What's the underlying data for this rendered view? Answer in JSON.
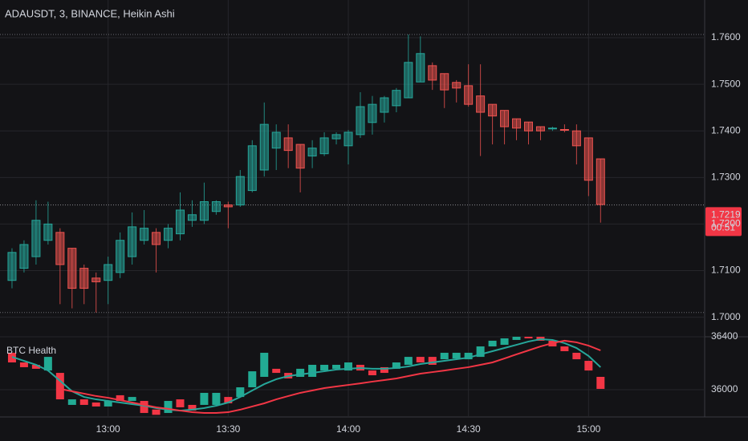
{
  "chart_data": [
    {
      "type": "candlestick",
      "title": "ADAUSDT, 3, BINANCE, Heikin Ashi",
      "x": [
        "12:36",
        "12:39",
        "12:42",
        "12:45",
        "12:48",
        "12:51",
        "12:54",
        "12:57",
        "13:00",
        "13:03",
        "13:06",
        "13:09",
        "13:12",
        "13:15",
        "13:18",
        "13:21",
        "13:24",
        "13:27",
        "13:30",
        "13:33",
        "13:36",
        "13:39",
        "13:42",
        "13:45",
        "13:48",
        "13:51",
        "13:54",
        "13:57",
        "14:00",
        "14:03",
        "14:06",
        "14:09",
        "14:12",
        "14:15",
        "14:18",
        "14:21",
        "14:24",
        "14:27",
        "14:30",
        "14:33",
        "14:36",
        "14:39",
        "14:42",
        "14:45",
        "14:48",
        "14:51",
        "14:54",
        "14:57",
        "15:00",
        "15:03"
      ],
      "open": [
        1.7079,
        1.7105,
        1.713,
        1.7165,
        1.7182,
        1.7148,
        1.7105,
        1.7084,
        1.7079,
        1.7096,
        1.713,
        1.7165,
        1.7182,
        1.7165,
        1.7179,
        1.7208,
        1.7208,
        1.7227,
        1.7241,
        1.7241,
        1.7272,
        1.7316,
        1.7363,
        1.7385,
        1.7371,
        1.7346,
        1.7351,
        1.7383,
        1.7368,
        1.7392,
        1.7418,
        1.744,
        1.7454,
        1.7471,
        1.7505,
        1.754,
        1.7523,
        1.7504,
        1.7497,
        1.7475,
        1.7457,
        1.7444,
        1.7426,
        1.7419,
        1.7409,
        1.7405,
        1.7403,
        1.74,
        1.7385,
        1.734
      ],
      "high": [
        1.7148,
        1.7165,
        1.7251,
        1.7248,
        1.7191,
        1.7148,
        1.7113,
        1.7096,
        1.713,
        1.7182,
        1.7225,
        1.723,
        1.7191,
        1.72,
        1.7268,
        1.7251,
        1.7289,
        1.7251,
        1.7248,
        1.7316,
        1.738,
        1.7461,
        1.7414,
        1.7414,
        1.7371,
        1.738,
        1.7397,
        1.7397,
        1.7402,
        1.7483,
        1.7475,
        1.7475,
        1.7492,
        1.7607,
        1.7603,
        1.7547,
        1.7523,
        1.7509,
        1.7543,
        1.7543,
        1.7457,
        1.7444,
        1.7426,
        1.7419,
        1.7409,
        1.7409,
        1.7414,
        1.7414,
        1.7385,
        1.734
      ],
      "low": [
        1.7062,
        1.7096,
        1.7113,
        1.7156,
        1.7028,
        1.7019,
        1.7028,
        1.701,
        1.7028,
        1.7084,
        1.7113,
        1.7156,
        1.7096,
        1.7148,
        1.7165,
        1.7194,
        1.72,
        1.722,
        1.7191,
        1.7237,
        1.7268,
        1.7302,
        1.7316,
        1.732,
        1.7268,
        1.732,
        1.7346,
        1.7371,
        1.7328,
        1.7385,
        1.7392,
        1.7418,
        1.744,
        1.7471,
        1.7505,
        1.7488,
        1.7449,
        1.7461,
        1.7452,
        1.7346,
        1.7371,
        1.7371,
        1.738,
        1.7371,
        1.738,
        1.74,
        1.7397,
        1.7328,
        1.726,
        1.7203
      ],
      "close": [
        1.7139,
        1.7156,
        1.7208,
        1.72,
        1.7113,
        1.7062,
        1.7062,
        1.7076,
        1.7113,
        1.7165,
        1.7194,
        1.7191,
        1.7156,
        1.7191,
        1.723,
        1.722,
        1.7248,
        1.7248,
        1.7237,
        1.7302,
        1.7368,
        1.7414,
        1.7397,
        1.7358,
        1.732,
        1.7363,
        1.7385,
        1.7392,
        1.7397,
        1.7452,
        1.7457,
        1.7471,
        1.7487,
        1.7547,
        1.7566,
        1.7509,
        1.7488,
        1.7492,
        1.7457,
        1.744,
        1.7432,
        1.7409,
        1.7406,
        1.74,
        1.74,
        1.7406,
        1.7402,
        1.7368,
        1.7294,
        1.7242
      ],
      "xlim": [
        "12:33",
        "15:29"
      ],
      "xticks": [
        "13:00",
        "13:30",
        "14:00",
        "14:30",
        "15:00"
      ],
      "ylim": [
        1.6958,
        1.7681
      ],
      "yticks": [
        {
          "value": 1.76,
          "label": "1.7600"
        },
        {
          "value": 1.75,
          "label": "1.7500"
        },
        {
          "value": 1.74,
          "label": "1.7400"
        },
        {
          "value": 1.73,
          "label": "1.7300"
        },
        {
          "value": 1.72,
          "label": "1.7200"
        },
        {
          "value": 1.71,
          "label": "1.7100"
        },
        {
          "value": 1.7,
          "label": "1.7000"
        }
      ],
      "grid": true,
      "up_color": "#26a69a",
      "down_color": "#ef5350",
      "range_lines": [
        1.7607,
        1.701
      ],
      "price_line": 1.7241,
      "last_price": 1.7219,
      "countdown": "00:51",
      "badge_color": "#f23645"
    },
    {
      "type": "indicator",
      "title": "BTC Health",
      "open": [
        36279,
        36206,
        36188,
        36145,
        36127,
        35885,
        35927,
        35903,
        35873,
        35958,
        35915,
        35915,
        35850,
        35824,
        35927,
        35885,
        35885,
        35885,
        35945,
        35945,
        36018,
        36097,
        36158,
        36127,
        36097,
        36097,
        36145,
        36158,
        36145,
        36188,
        36145,
        36170,
        36158,
        36188,
        36248,
        36248,
        36230,
        36236,
        36230,
        36248,
        36327,
        36339,
        36376,
        36400,
        36400,
        36370,
        36327,
        36279,
        36218,
        36097
      ],
      "close": [
        36206,
        36170,
        36158,
        36248,
        35927,
        35927,
        35885,
        35873,
        35915,
        35915,
        35945,
        35824,
        35810,
        35915,
        35867,
        35842,
        35976,
        35976,
        35897,
        36018,
        36139,
        36279,
        36127,
        36085,
        36158,
        36188,
        36188,
        36188,
        36206,
        36145,
        36109,
        36127,
        36206,
        36248,
        36206,
        36188,
        36279,
        36279,
        36279,
        36327,
        36370,
        36388,
        36400,
        36388,
        36370,
        36327,
        36291,
        36230,
        36145,
        36006
      ],
      "lines": [
        {
          "color": "#26a69a",
          "values": [
            36248,
            36218,
            36188,
            36145,
            36067,
            35988,
            35945,
            35927,
            35915,
            35903,
            35891,
            35879,
            35861,
            35849,
            35842,
            35849,
            35861,
            35879,
            35903,
            35945,
            35994,
            36042,
            36079,
            36103,
            36115,
            36127,
            36139,
            36152,
            36158,
            36164,
            36158,
            36158,
            36164,
            36176,
            36194,
            36206,
            36218,
            36230,
            36242,
            36267,
            36291,
            36315,
            36339,
            36364,
            36382,
            36376,
            36352,
            36315,
            36255,
            36170
          ]
        },
        {
          "color": "#f23645",
          "values": [
            null,
            null,
            null,
            null,
            36006,
            35988,
            35970,
            35952,
            35939,
            35921,
            35903,
            35885,
            35867,
            35855,
            35842,
            35830,
            35824,
            35824,
            35830,
            35849,
            35873,
            35897,
            35927,
            35952,
            35976,
            35994,
            36012,
            36024,
            36036,
            36048,
            36061,
            36073,
            36085,
            36103,
            36121,
            36133,
            36145,
            36158,
            36170,
            36188,
            36206,
            36236,
            36267,
            36297,
            36327,
            36352,
            36370,
            36358,
            36333,
            36297
          ]
        }
      ],
      "ylim": [
        35800,
        36400
      ],
      "yticks": [
        36400,
        36000
      ],
      "up_color": "#22ab94",
      "down_color": "#f23645"
    }
  ]
}
